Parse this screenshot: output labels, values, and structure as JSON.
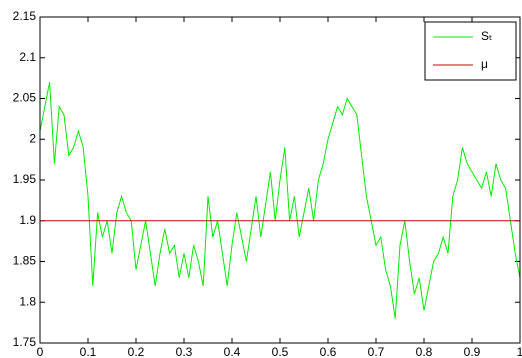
{
  "chart_data": {
    "type": "line",
    "x": [
      0,
      0.01,
      0.02,
      0.03,
      0.04,
      0.05,
      0.06,
      0.07,
      0.08,
      0.09,
      0.1,
      0.11,
      0.12,
      0.13,
      0.14,
      0.15,
      0.16,
      0.17,
      0.18,
      0.19,
      0.2,
      0.21,
      0.22,
      0.23,
      0.24,
      0.25,
      0.26,
      0.27,
      0.28,
      0.29,
      0.3,
      0.31,
      0.32,
      0.33,
      0.34,
      0.35,
      0.36,
      0.37,
      0.38,
      0.39,
      0.4,
      0.41,
      0.42,
      0.43,
      0.44,
      0.45,
      0.46,
      0.47,
      0.48,
      0.49,
      0.5,
      0.51,
      0.52,
      0.53,
      0.54,
      0.55,
      0.56,
      0.57,
      0.58,
      0.59,
      0.6,
      0.61,
      0.62,
      0.63,
      0.64,
      0.65,
      0.66,
      0.67,
      0.68,
      0.69,
      0.7,
      0.71,
      0.72,
      0.73,
      0.74,
      0.75,
      0.76,
      0.77,
      0.78,
      0.79,
      0.8,
      0.81,
      0.82,
      0.83,
      0.84,
      0.85,
      0.86,
      0.87,
      0.88,
      0.89,
      0.9,
      0.91,
      0.92,
      0.93,
      0.94,
      0.95,
      0.96,
      0.97,
      0.98,
      0.99,
      1
    ],
    "series": [
      {
        "name": "Sₜ",
        "color": "#00ee00",
        "values": [
          2.01,
          2.04,
          2.07,
          1.97,
          2.04,
          2.03,
          1.98,
          1.99,
          2.01,
          1.99,
          1.93,
          1.82,
          1.91,
          1.88,
          1.9,
          1.86,
          1.91,
          1.93,
          1.91,
          1.9,
          1.84,
          1.87,
          1.9,
          1.86,
          1.82,
          1.86,
          1.89,
          1.86,
          1.87,
          1.83,
          1.86,
          1.83,
          1.87,
          1.85,
          1.82,
          1.93,
          1.88,
          1.9,
          1.86,
          1.82,
          1.87,
          1.91,
          1.88,
          1.85,
          1.89,
          1.93,
          1.88,
          1.92,
          1.96,
          1.9,
          1.95,
          1.99,
          1.9,
          1.93,
          1.88,
          1.91,
          1.94,
          1.9,
          1.95,
          1.97,
          2.0,
          2.02,
          2.04,
          2.03,
          2.05,
          2.04,
          2.03,
          1.98,
          1.93,
          1.9,
          1.87,
          1.88,
          1.84,
          1.82,
          1.78,
          1.87,
          1.9,
          1.85,
          1.81,
          1.83,
          1.79,
          1.82,
          1.85,
          1.86,
          1.88,
          1.86,
          1.93,
          1.95,
          1.99,
          1.97,
          1.96,
          1.95,
          1.94,
          1.96,
          1.93,
          1.97,
          1.95,
          1.94,
          1.9,
          1.86,
          1.83
        ]
      },
      {
        "name": "μ",
        "color": "#d00000",
        "x": [
          0,
          1
        ],
        "values": [
          1.9,
          1.9
        ]
      }
    ],
    "xlim": [
      0,
      1
    ],
    "xticks": [
      0,
      0.1,
      0.2,
      0.3,
      0.4,
      0.5,
      0.6,
      0.7,
      0.8,
      0.9,
      1
    ],
    "ylim": [
      1.75,
      2.15
    ],
    "yticks": [
      1.75,
      1.8,
      1.85,
      1.9,
      1.95,
      2,
      2.05,
      2.1,
      2.15
    ],
    "grid": false,
    "legend": "top-right"
  }
}
